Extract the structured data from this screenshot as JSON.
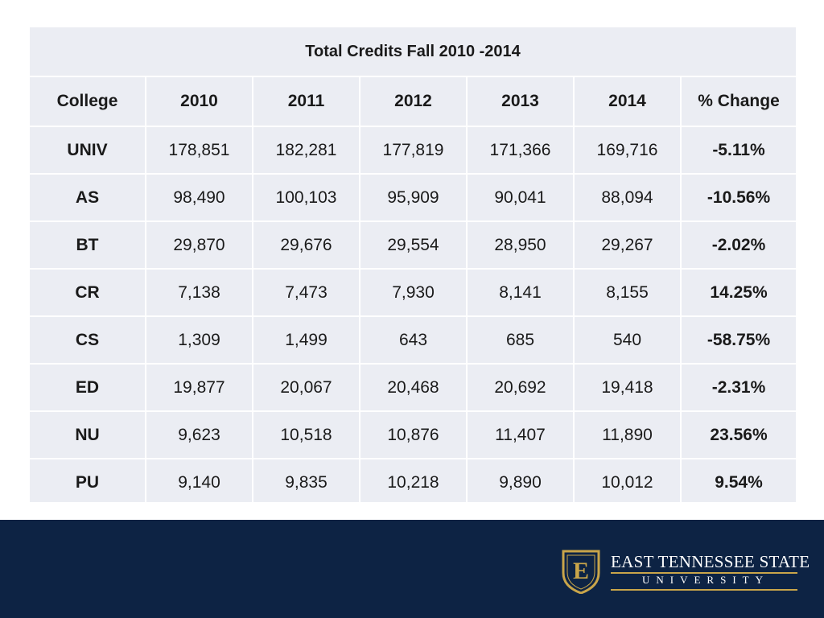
{
  "table": {
    "title": "Total Credits Fall 2010 -2014",
    "headers": [
      "College",
      "2010",
      "2011",
      "2012",
      "2013",
      "2014",
      "% Change"
    ],
    "rows": [
      [
        "UNIV",
        "178,851",
        "182,281",
        "177,819",
        "171,366",
        "169,716",
        "-5.11%"
      ],
      [
        "AS",
        "98,490",
        "100,103",
        "95,909",
        "90,041",
        "88,094",
        "-10.56%"
      ],
      [
        "BT",
        "29,870",
        "29,676",
        "29,554",
        "28,950",
        "29,267",
        "-2.02%"
      ],
      [
        "CR",
        "7,138",
        "7,473",
        "7,930",
        "8,141",
        "8,155",
        "14.25%"
      ],
      [
        "CS",
        "1,309",
        "1,499",
        "643",
        "685",
        "540",
        "-58.75%"
      ],
      [
        "ED",
        "19,877",
        "20,067",
        "20,468",
        "20,692",
        "19,418",
        "-2.31%"
      ],
      [
        "NU",
        "9,623",
        "10,518",
        "10,876",
        "11,407",
        "11,890",
        "23.56%"
      ],
      [
        "PU",
        "9,140",
        "9,835",
        "10,218",
        "9,890",
        "10,012",
        "9.54%"
      ]
    ]
  },
  "footer": {
    "university_line1": "EAST TENNESSEE STATE",
    "university_line2": "UNIVERSITY",
    "logo_letter": "E",
    "colors": {
      "navy": "#0d2344",
      "gold": "#c9a54a",
      "table_bg": "#ebedf3"
    }
  }
}
